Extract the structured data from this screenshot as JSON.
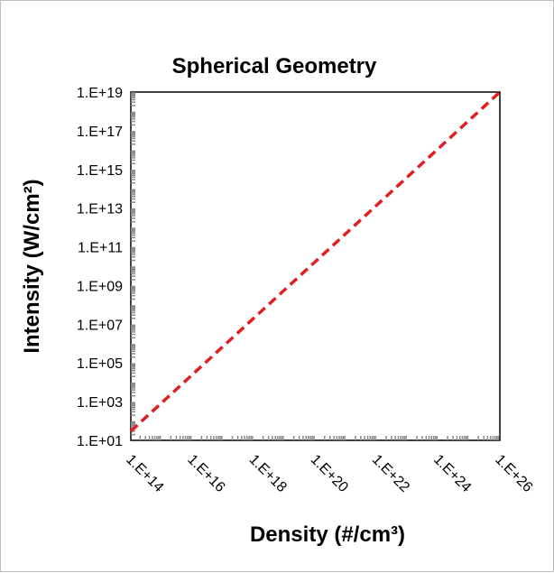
{
  "chart_data": {
    "type": "line",
    "title": "Spherical Geometry",
    "xlabel": "Density (#/cm³)",
    "ylabel": "Intensity (W/cm²)",
    "x_scale": "log",
    "y_scale": "log",
    "xlim": [
      100000000000000.0,
      1e+26
    ],
    "ylim": [
      10,
      1e+19
    ],
    "x_tick_labels": [
      "1.E+14",
      "1.E+16",
      "1.E+18",
      "1.E+20",
      "1.E+22",
      "1.E+24",
      "1.E+26"
    ],
    "y_tick_labels": [
      "1.E+01",
      "1.E+03",
      "1.E+05",
      "1.E+07",
      "1.E+09",
      "1.E+11",
      "1.E+13",
      "1.E+15",
      "1.E+17",
      "1.E+19"
    ],
    "grid": false,
    "legend": "none",
    "series": [
      {
        "color": "#e02020",
        "line_style": "dashed",
        "x": [
          100000000000000.0,
          1e+26
        ],
        "y": [
          30,
          1e+19
        ]
      }
    ]
  }
}
